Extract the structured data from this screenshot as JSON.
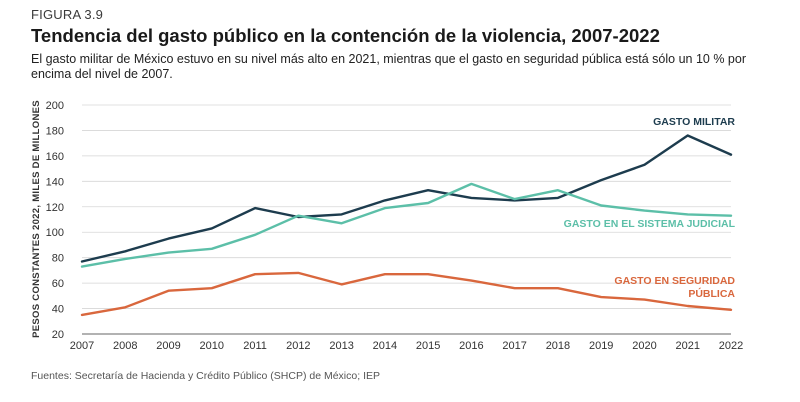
{
  "figure_label": "FIGURA 3.9",
  "source": "Fuentes: Secretaría de Hacienda y Crédito Público (SHCP) de México; IEP",
  "chart_data": {
    "type": "line",
    "title": "Tendencia del gasto público en la contención de la violencia, 2007-2022",
    "subtitle": "El gasto militar de México estuvo en su nivel más alto en 2021, mientras que el gasto en seguridad pública está sólo un 10 % por encima del nivel de 2007.",
    "xlabel": "",
    "ylabel": "PESOS CONSTANTES 2022, MILES DE MILLONES",
    "ylim": [
      20,
      200
    ],
    "yticks": [
      20,
      40,
      60,
      80,
      100,
      120,
      140,
      160,
      180,
      200
    ],
    "x": [
      "2007",
      "2008",
      "2009",
      "2010",
      "2011",
      "2012",
      "2013",
      "2014",
      "2015",
      "2016",
      "2017",
      "2018",
      "2019",
      "2020",
      "2021",
      "2022"
    ],
    "series": [
      {
        "name": "GASTO MILITAR",
        "label_lines": [
          "GASTO MILITAR"
        ],
        "color": "#1d3c4e",
        "values": [
          77,
          85,
          95,
          103,
          119,
          112,
          114,
          125,
          133,
          127,
          125,
          127,
          141,
          153,
          176,
          161
        ]
      },
      {
        "name": "GASTO EN EL SISTEMA JUDICIAL",
        "label_lines": [
          "GASTO EN EL SISTEMA JUDICIAL"
        ],
        "color": "#5cbfa8",
        "values": [
          73,
          79,
          84,
          87,
          98,
          113,
          107,
          119,
          123,
          138,
          126,
          133,
          121,
          117,
          114,
          113
        ]
      },
      {
        "name": "GASTO EN SEGURIDAD PÚBLICA",
        "label_lines": [
          "GASTO EN SEGURIDAD",
          "PÚBLICA"
        ],
        "color": "#d9673d",
        "values": [
          35,
          41,
          54,
          56,
          67,
          68,
          59,
          67,
          67,
          62,
          56,
          56,
          49,
          47,
          42,
          39
        ]
      }
    ]
  }
}
